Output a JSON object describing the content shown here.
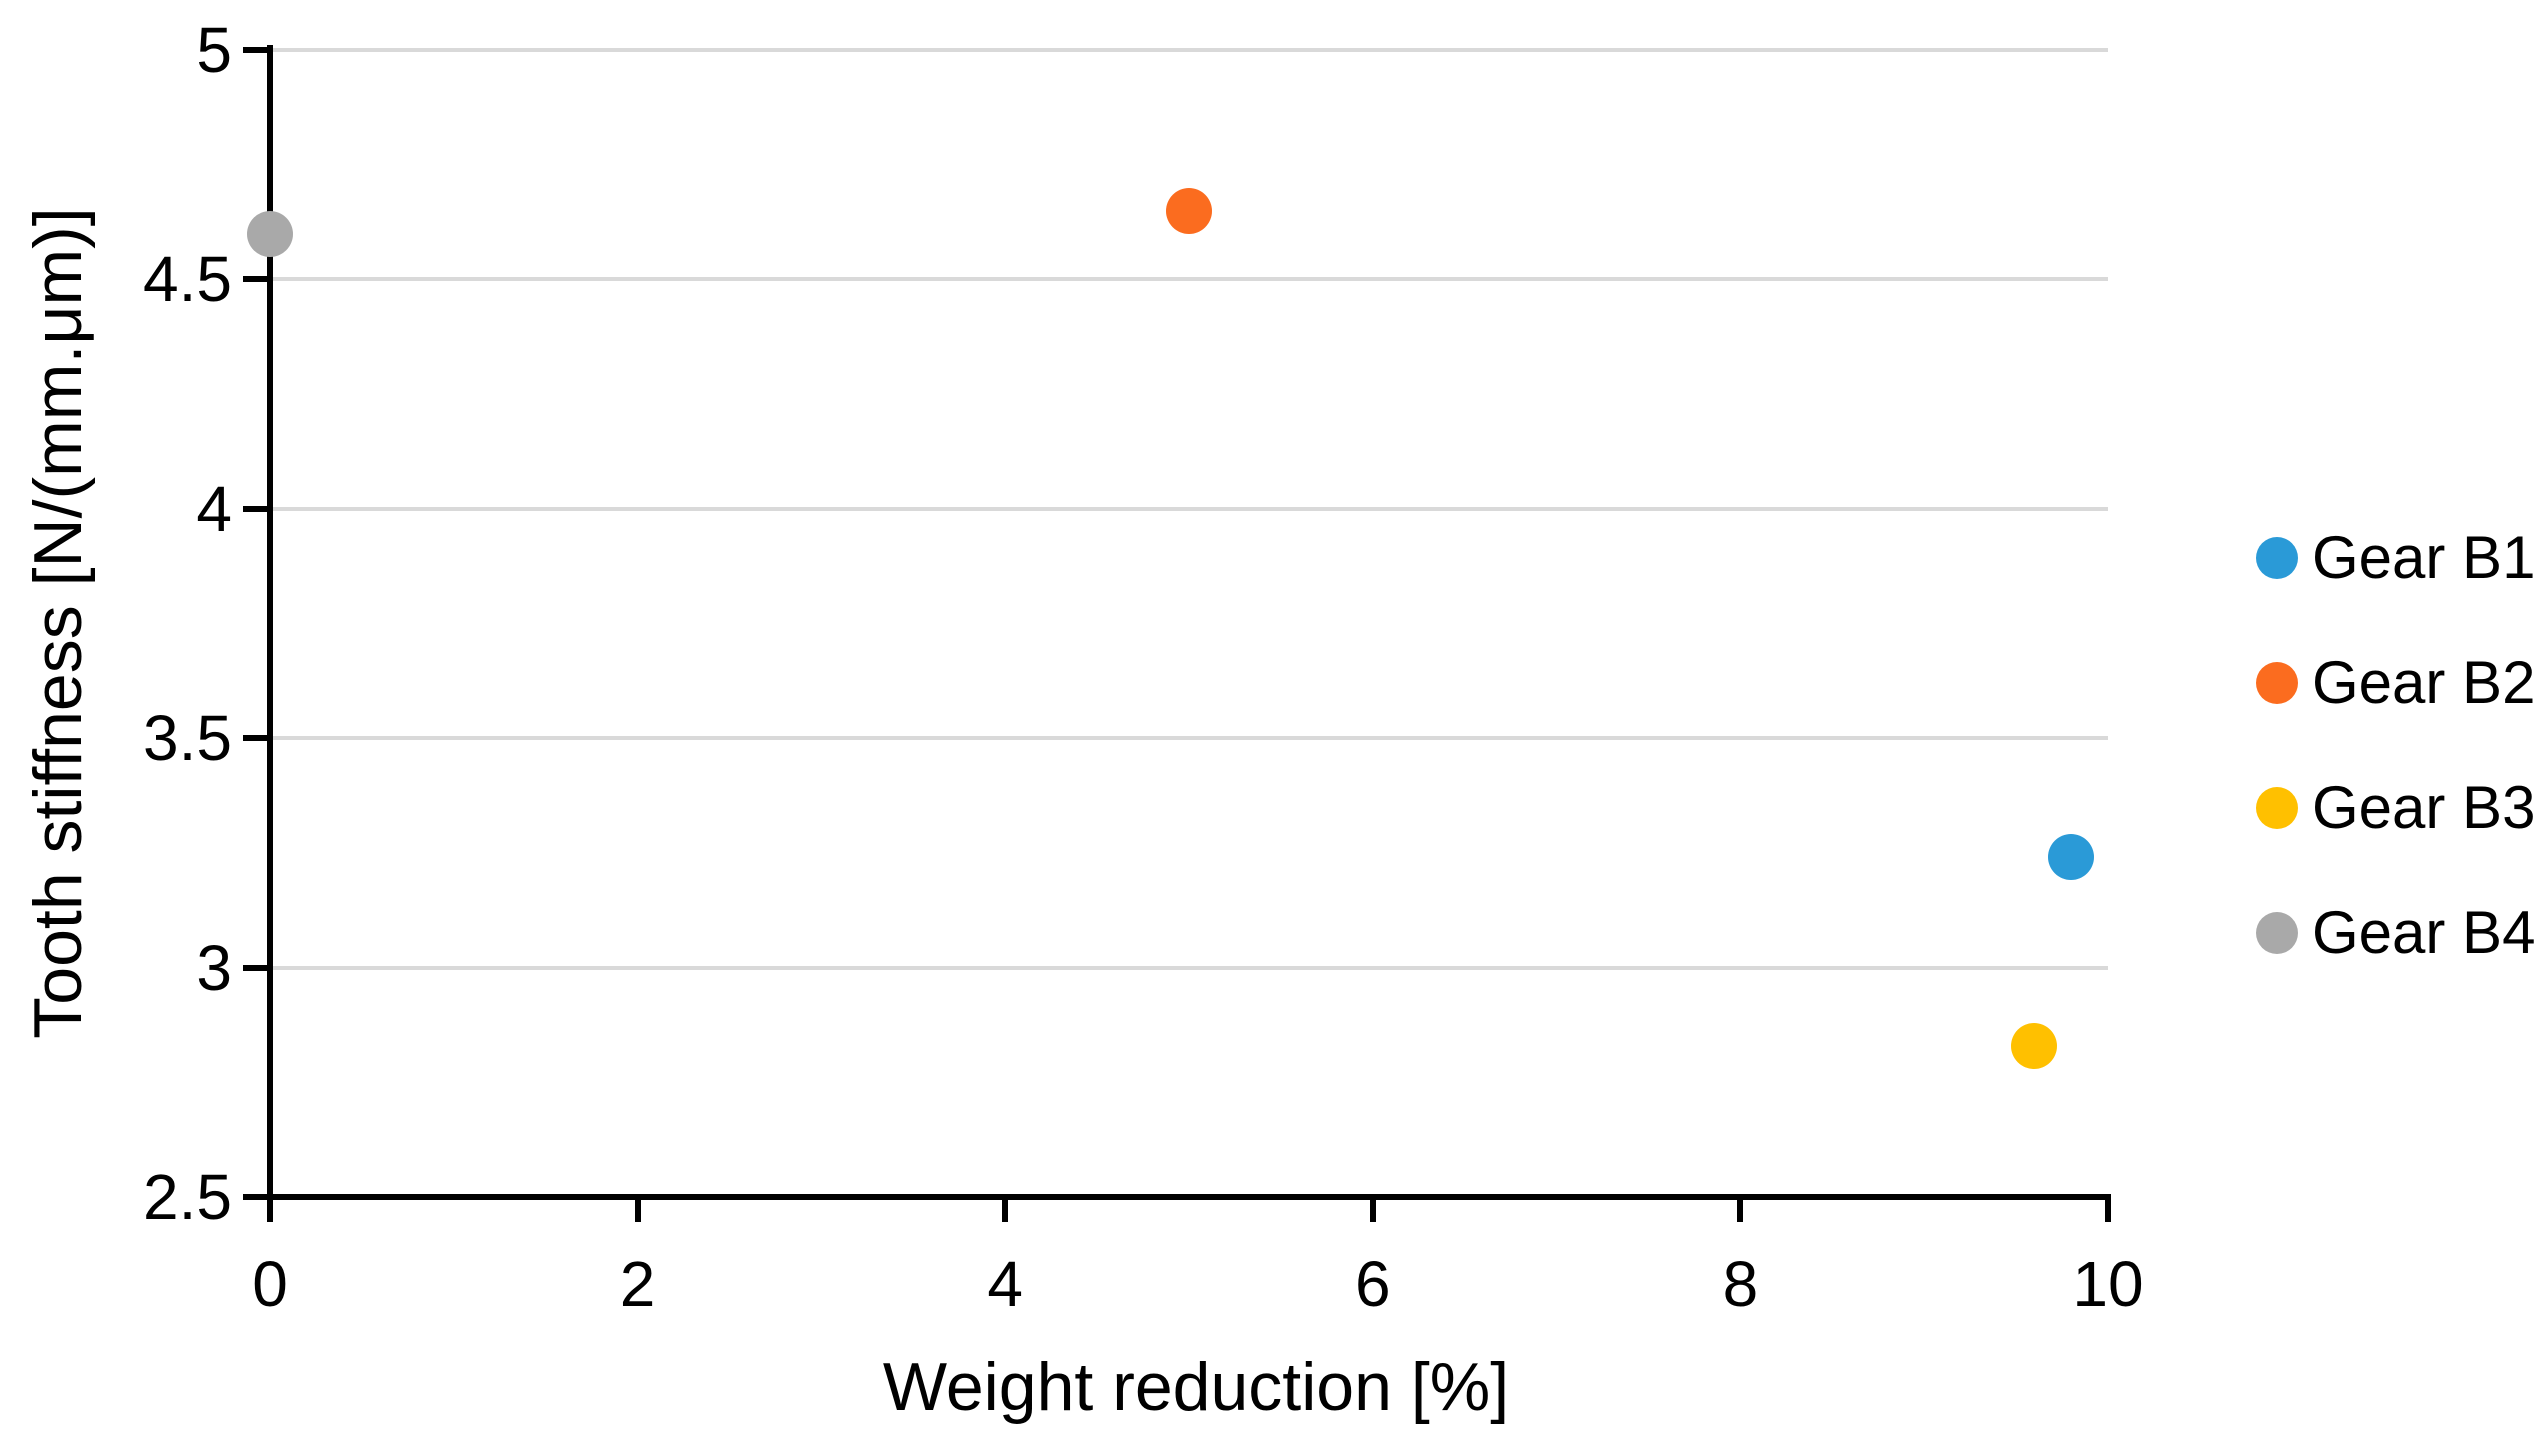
{
  "chart_data": {
    "type": "scatter",
    "title": "",
    "xlabel": "Weight reduction [%]",
    "ylabel": "Tooth stiffness [N/(mm.μm)]",
    "xlim": [
      0,
      10
    ],
    "ylim": [
      2.5,
      5
    ],
    "x_ticks": [
      "0",
      "2",
      "4",
      "6",
      "8",
      "10"
    ],
    "y_ticks": [
      "5",
      "4.5",
      "4",
      "3.5",
      "3",
      "2.5"
    ],
    "grid": "horizontal-only",
    "legend_position": "right",
    "series": [
      {
        "name": "Gear B1",
        "color": "#2A9AD7",
        "points": [
          {
            "x": 9.8,
            "y": 3.24
          }
        ]
      },
      {
        "name": "Gear B2",
        "color": "#FB6C1F",
        "points": [
          {
            "x": 5.0,
            "y": 4.65
          }
        ]
      },
      {
        "name": "Gear B3",
        "color": "#FFC000",
        "points": [
          {
            "x": 9.6,
            "y": 2.83
          }
        ]
      },
      {
        "name": "Gear B4",
        "color": "#A9A9A9",
        "points": [
          {
            "x": 0.0,
            "y": 4.6
          }
        ]
      }
    ],
    "colors": {
      "gridline": "#D9D9D9",
      "axis": "#000000",
      "text": "#000000",
      "background": "#FFFFFF"
    }
  }
}
